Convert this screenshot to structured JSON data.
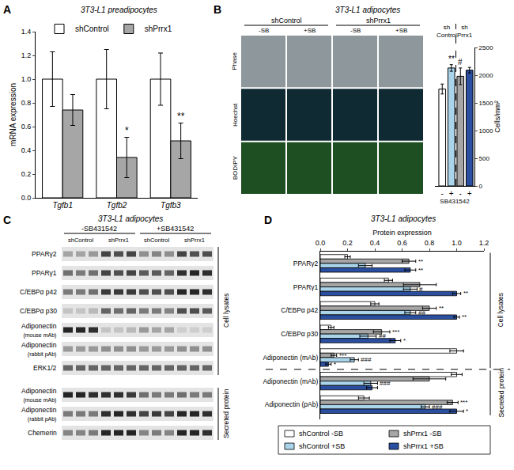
{
  "chart_data": [
    {
      "type": "bar",
      "panel_label": "A",
      "title": "3T3-L1 preadipocytes",
      "y_label": "mRNA expression",
      "categories": [
        "Tgfb1",
        "Tgfb2",
        "Tgfb3"
      ],
      "series": [
        {
          "name": "shControl",
          "color": "#ffffff",
          "values": [
            1,
            1,
            1
          ],
          "errors": [
            0.23,
            0.25,
            0.22
          ]
        },
        {
          "name": "shPrrx1",
          "color": "#a6a6a6",
          "values": [
            0.74,
            0.34,
            0.48
          ],
          "errors": [
            0.13,
            0.17,
            0.15
          ]
        }
      ],
      "ylim": [
        0,
        1.4
      ],
      "yticks": [
        {
          "value": 0,
          "label": "0.0"
        },
        {
          "value": 0.2,
          "label": "0.2"
        },
        {
          "value": 0.4,
          "label": "0.4"
        },
        {
          "value": 0.6,
          "label": "0.6"
        },
        {
          "value": 0.8,
          "label": "0.8"
        },
        {
          "value": 1,
          "label": "1.0"
        },
        {
          "value": 1.2,
          "label": "1.2"
        },
        {
          "value": 1.4,
          "label": "1.4"
        }
      ],
      "legend": "top",
      "annotations": [
        {
          "category_index": 1,
          "series": "shPrrx1",
          "text": "*"
        },
        {
          "category_index": 2,
          "series": "shPrrx1",
          "text": "**"
        }
      ]
    },
    {
      "type": "bar",
      "x_label": "SB431542",
      "y_label": "Cells/mm²",
      "categories": [
        "-",
        "+",
        "-",
        "+"
      ],
      "values": [
        1750,
        2130,
        1980,
        2090
      ],
      "errors": [
        90,
        60,
        150,
        50
      ],
      "colors": [
        "#ffffff",
        "#a9d4ea",
        "#a6a6a6",
        "#2b4fa0"
      ],
      "groups": [
        {
          "label_lines": [
            "sh",
            "Control"
          ],
          "size": 2
        },
        {
          "label_lines": [
            "sh",
            "Prrx1"
          ],
          "size": 2
        }
      ],
      "ylim": [
        0,
        2500
      ],
      "yticks": [
        0,
        500,
        1000,
        1500,
        2000,
        2500
      ],
      "annotations": [
        {
          "category_index": 1,
          "text": "**"
        },
        {
          "category_index": 2,
          "text": "#"
        }
      ]
    },
    {
      "type": "bar",
      "panel_label": "D",
      "title": "3T3-L1 adipocytes",
      "x_label": "Protein expression",
      "orientation": "horizontal",
      "categories": [
        "PPARγ2",
        "PPARγ1",
        "C/EBPα p42",
        "C/EBPα p30",
        "Adiponectin (mAb)",
        "Adiponectin (mAb)",
        "Adiponectin (pAb)"
      ],
      "groups": [
        {
          "label": "Cell lysates",
          "size": 5
        },
        {
          "label": "Secreted protein",
          "size": 2
        }
      ],
      "series": [
        {
          "name": "shControl -SB",
          "color": "#ffffff",
          "values": [
            0.2,
            0.5,
            0.4,
            0.08,
            1.0,
            1.0,
            0.32
          ],
          "errors": [
            0.02,
            0.03,
            0.03,
            0.02,
            0.05,
            0.04,
            0.04
          ]
        },
        {
          "name": "shPrrx1 -SB",
          "color": "#a6a6a6",
          "values": [
            0.65,
            0.73,
            0.8,
            0.45,
            0.1,
            0.8,
            0.97
          ],
          "errors": [
            0.05,
            0.12,
            0.05,
            0.06,
            0.02,
            0.12,
            0.04
          ]
        },
        {
          "name": "shControl +SB",
          "color": "#a9d4ea",
          "values": [
            0.33,
            0.66,
            0.66,
            0.35,
            0.25,
            0.37,
            0.77
          ],
          "errors": [
            0.05,
            0.05,
            0.04,
            0.06,
            0.03,
            0.05,
            0.03
          ]
        },
        {
          "name": "shPrrx1 +SB",
          "color": "#2b4fa0",
          "values": [
            0.66,
            1.0,
            1.0,
            0.55,
            0.06,
            0.38,
            1.0
          ],
          "errors": [
            0.04,
            0.03,
            0.02,
            0.04,
            0.02,
            0.04,
            0.05
          ]
        }
      ],
      "xlim": [
        0,
        1.2
      ],
      "xticks": [
        {
          "value": 0,
          "label": "0.0"
        },
        {
          "value": 0.2,
          "label": "0.2"
        },
        {
          "value": 0.4,
          "label": "0.4"
        },
        {
          "value": 0.6,
          "label": "0.6"
        },
        {
          "value": 0.8,
          "label": "0.8"
        },
        {
          "value": 1,
          "label": "1.0"
        },
        {
          "value": 1.2,
          "label": "1.2"
        }
      ],
      "legend": "bottom",
      "annotations": [
        {
          "category_index": 0,
          "series": "shPrrx1 -SB",
          "text": "**"
        },
        {
          "category_index": 0,
          "series": "shPrrx1 +SB",
          "text": "**"
        },
        {
          "category_index": 1,
          "series": "shControl +SB",
          "text": "#"
        },
        {
          "category_index": 1,
          "series": "shPrrx1 +SB",
          "text": "**"
        },
        {
          "category_index": 2,
          "series": "shPrrx1 -SB",
          "text": "**"
        },
        {
          "category_index": 2,
          "series": "shControl +SB",
          "text": "##"
        },
        {
          "category_index": 2,
          "series": "shPrrx1 +SB",
          "text": "**"
        },
        {
          "category_index": 3,
          "series": "shPrrx1 -SB",
          "text": "***"
        },
        {
          "category_index": 3,
          "series": "shControl +SB",
          "text": "##"
        },
        {
          "category_index": 3,
          "series": "shPrrx1 +SB",
          "text": "*"
        },
        {
          "category_index": 4,
          "series": "shPrrx1 -SB",
          "text": "***"
        },
        {
          "category_index": 4,
          "series": "shControl +SB",
          "text": "###"
        },
        {
          "category_index": 4,
          "series": "shPrrx1 +SB",
          "text": "*"
        },
        {
          "category_index": 5,
          "series": "shControl +SB",
          "text": "###"
        },
        {
          "category_index": 6,
          "series": "shPrrx1 -SB",
          "text": "***"
        },
        {
          "category_index": 6,
          "series": "shControl +SB",
          "text": "###"
        },
        {
          "category_index": 6,
          "series": "shPrrx1 +SB",
          "text": "*"
        }
      ]
    }
  ],
  "image_panel": {
    "panel_label": "B",
    "title": "3T3-L1 adipocytes",
    "groups": [
      "shControl",
      "shPrrx1"
    ],
    "columns": [
      "-SB",
      "+SB",
      "-SB",
      "+SB"
    ],
    "rows": [
      {
        "label": "Phase",
        "color": "#8e979c"
      },
      {
        "label": "Hoechst",
        "color": "#0f2a33"
      },
      {
        "label": "BODIPY",
        "color": "#1d4f22"
      }
    ]
  },
  "blot_panel": {
    "panel_label": "C",
    "title": "3T3-L1 adipocytes",
    "treatments": [
      "-SB431542",
      "+SB431542"
    ],
    "groups": [
      "shControl",
      "shPrrx1",
      "shControl",
      "shPrrx1"
    ],
    "sections": [
      {
        "label": "Cell lysates",
        "rows": [
          {
            "label": "PPARγ2",
            "bands": [
              0.3,
              0.3,
              0.35,
              0.75,
              0.7,
              0.75,
              0.4,
              0.45,
              0.4,
              0.75,
              0.7,
              0.7
            ]
          },
          {
            "label": "PPARγ1",
            "bands": [
              0.55,
              0.5,
              0.55,
              0.75,
              0.7,
              0.75,
              0.65,
              0.65,
              0.6,
              0.85,
              0.9,
              0.85
            ]
          },
          {
            "label": "C/EBPα p42",
            "bands": [
              0.5,
              0.5,
              0.55,
              0.8,
              0.8,
              0.8,
              0.7,
              0.7,
              0.7,
              0.9,
              0.9,
              0.85
            ]
          },
          {
            "label": "C/EBPα p30",
            "bands": [
              0.15,
              0.15,
              0.2,
              0.6,
              0.55,
              0.6,
              0.5,
              0.5,
              0.45,
              0.7,
              0.7,
              0.65
            ]
          },
          {
            "label": "Adiponectin",
            "sublabel": "(mouse mAb)",
            "bands": [
              0.9,
              0.9,
              0.85,
              0.15,
              0.15,
              0.2,
              0.35,
              0.3,
              0.3,
              0.1,
              0.1,
              0.1
            ]
          },
          {
            "label": "Adiponectin",
            "sublabel": "(rabbit pAb)",
            "bands": [
              0.35,
              0.35,
              0.35,
              0.4,
              0.4,
              0.4,
              0.35,
              0.35,
              0.35,
              0.4,
              0.4,
              0.4
            ]
          },
          {
            "label": "ERK1/2",
            "bands": [
              0.6,
              0.6,
              0.6,
              0.6,
              0.6,
              0.6,
              0.6,
              0.6,
              0.6,
              0.6,
              0.6,
              0.6
            ]
          }
        ]
      },
      {
        "label": "Secreted protein",
        "rows": [
          {
            "label": "Adiponectin",
            "sublabel": "(mouse mAb)",
            "bands": [
              0.9,
              0.9,
              0.85,
              0.85,
              0.85,
              0.8,
              0.55,
              0.5,
              0.5,
              0.55,
              0.5,
              0.5
            ]
          },
          {
            "label": "Adiponectin",
            "sublabel": "(rabbit pAb)",
            "bands": [
              0.5,
              0.5,
              0.5,
              0.85,
              0.9,
              0.85,
              0.75,
              0.8,
              0.75,
              0.9,
              0.9,
              0.85
            ]
          },
          {
            "label": "Chemerin",
            "bands": [
              0.45,
              0.45,
              0.5,
              0.9,
              0.9,
              0.9,
              0.45,
              0.5,
              0.45,
              0.9,
              0.9,
              0.85
            ]
          }
        ]
      }
    ]
  }
}
